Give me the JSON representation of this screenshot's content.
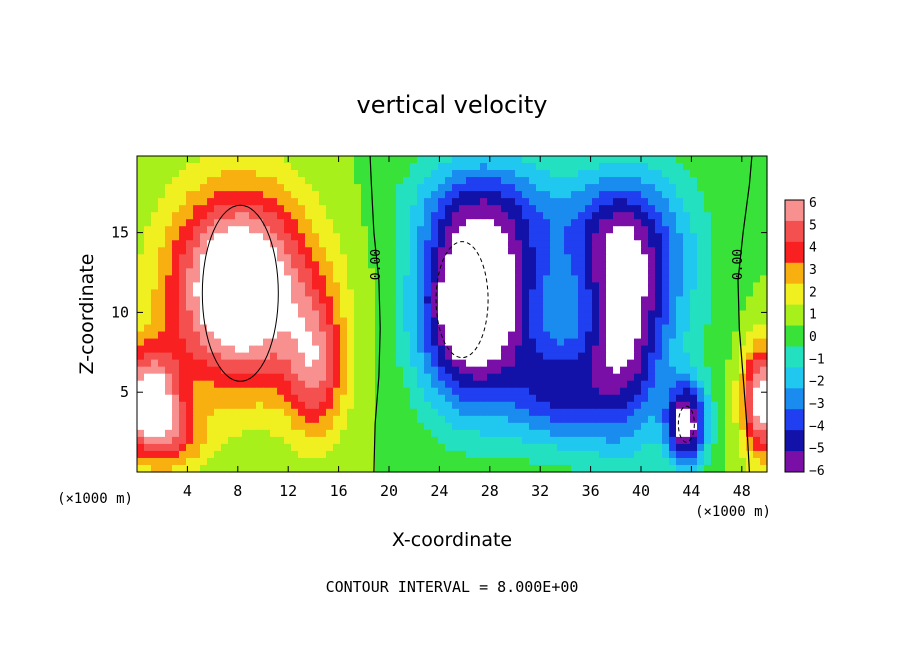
{
  "chart_data": {
    "type": "heatmap",
    "title": "vertical velocity",
    "xlabel": "X-coordinate",
    "ylabel": "Z-coordinate",
    "x_unit_note": "(×1000 m)",
    "x_ticks": [
      "4",
      "8",
      "12",
      "16",
      "20",
      "24",
      "28",
      "32",
      "36",
      "40",
      "44",
      "48"
    ],
    "y_ticks": [
      "5",
      "10",
      "15"
    ],
    "xlim": [
      0,
      50
    ],
    "ylim": [
      0,
      19.8
    ],
    "colorbar": {
      "ticks": [
        "6",
        "5",
        "4",
        "3",
        "2",
        "1",
        "0",
        "−1",
        "−2",
        "−3",
        "−4",
        "−5",
        "−6"
      ],
      "range": [
        -6,
        6
      ]
    },
    "contour_labels": [
      {
        "text": "0.00",
        "x": 19.3,
        "z": 13.0
      },
      {
        "text": "0.00",
        "x": 48.0,
        "z": 13.0
      }
    ],
    "footer": "CONTOUR INTERVAL = 8.000E+00",
    "features": [
      {
        "x": 8.2,
        "z": 11.5,
        "rx": 5.5,
        "rz": 6.0,
        "v": 9
      },
      {
        "x": 14.2,
        "z": 6.5,
        "rx": 2.4,
        "rz": 4.5,
        "v": 4.5
      },
      {
        "x": 1.0,
        "z": 4.5,
        "rx": 2.5,
        "rz": 3.2,
        "v": 7
      },
      {
        "x": 49.6,
        "z": 4.5,
        "rx": 1.6,
        "rz": 3.5,
        "v": 7
      },
      {
        "x": 3.0,
        "z": 2.0,
        "rx": 3.0,
        "rz": 2.0,
        "v": 2.5
      },
      {
        "x": 26.2,
        "z": 10.5,
        "rx": 4.0,
        "rz": 6.2,
        "v": -9
      },
      {
        "x": 30.0,
        "z": 12.0,
        "rx": 4.0,
        "rz": 6.5,
        "v": -3.2
      },
      {
        "x": 33.5,
        "z": 5.0,
        "rx": 4.0,
        "rz": 3.5,
        "v": -4.5
      },
      {
        "x": 38.5,
        "z": 9.0,
        "rx": 3.2,
        "rz": 7.0,
        "v": -6.5
      },
      {
        "x": 37.5,
        "z": 15.0,
        "rx": 5.0,
        "rz": 4.0,
        "v": -3.5
      },
      {
        "x": 43.6,
        "z": 3.0,
        "rx": 1.6,
        "rz": 2.6,
        "v": -7.5
      },
      {
        "x": 42.0,
        "z": 12.0,
        "rx": 4.0,
        "rz": 7.0,
        "v": -2.0
      },
      {
        "x": 27.0,
        "z": 17.0,
        "rx": 6.0,
        "rz": 3.0,
        "v": -2.0
      }
    ]
  }
}
